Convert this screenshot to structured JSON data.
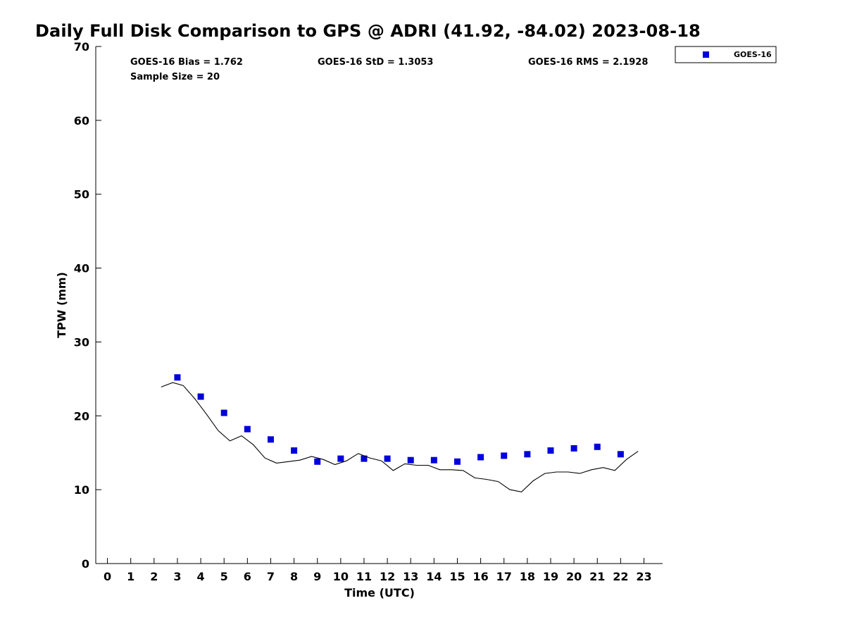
{
  "chart_data": {
    "type": "scatter",
    "title": "Daily Full Disk Comparison to GPS @ ADRI (41.92, -84.02) 2023-08-18",
    "xlabel": "Time (UTC)",
    "ylabel": "TPW (mm)",
    "xlim": [
      -0.5,
      23.8
    ],
    "ylim": [
      0,
      70
    ],
    "x_ticks": [
      "0",
      "1",
      "2",
      "3",
      "4",
      "5",
      "6",
      "7",
      "8",
      "9",
      "10",
      "11",
      "12",
      "13",
      "14",
      "15",
      "16",
      "17",
      "18",
      "19",
      "20",
      "21",
      "22",
      "23"
    ],
    "y_ticks": [
      "0",
      "10",
      "20",
      "30",
      "40",
      "50",
      "60",
      "70"
    ],
    "grid": false,
    "legend_position": "top-right (outside plot)",
    "stats": {
      "bias": "GOES-16 Bias = 1.762",
      "std": "GOES-16 StD = 1.3053",
      "rms": "GOES-16 RMS = 2.1928",
      "sample": "Sample Size = 20"
    },
    "series": [
      {
        "name": "GOES-16",
        "style": "markers",
        "color": "#0000dd",
        "x": [
          3,
          4,
          5,
          6,
          7,
          8,
          9,
          10,
          11,
          12,
          13,
          14,
          15,
          16,
          17,
          18,
          19,
          20,
          21,
          22
        ],
        "y": [
          25.2,
          22.6,
          20.4,
          18.2,
          16.8,
          15.3,
          13.8,
          14.2,
          14.2,
          14.2,
          14.0,
          14.0,
          13.8,
          14.4,
          14.6,
          14.8,
          15.3,
          15.6,
          15.8,
          14.8
        ]
      },
      {
        "style": "line",
        "color": "#000000",
        "x": [
          2.3,
          2.8,
          3.25,
          3.75,
          4.25,
          4.75,
          5.25,
          5.75,
          6.25,
          6.75,
          7.25,
          7.75,
          8.25,
          8.75,
          9.25,
          9.75,
          10.25,
          10.75,
          11.25,
          11.75,
          12.25,
          12.75,
          13.25,
          13.75,
          14.25,
          14.75,
          15.25,
          15.75,
          16.25,
          16.75,
          17.25,
          17.75,
          18.25,
          18.75,
          19.25,
          19.75,
          20.25,
          20.75,
          21.25,
          21.75,
          22.25,
          22.75
        ],
        "y": [
          23.9,
          24.5,
          24.1,
          22.3,
          20.2,
          18.0,
          16.6,
          17.3,
          16.1,
          14.3,
          13.6,
          13.8,
          14.0,
          14.5,
          14.1,
          13.4,
          13.9,
          14.9,
          14.3,
          13.9,
          12.6,
          13.5,
          13.3,
          13.3,
          12.7,
          12.7,
          12.6,
          11.6,
          11.4,
          11.1,
          10.0,
          9.7,
          11.2,
          12.2,
          12.4,
          12.4,
          12.2,
          12.7,
          13.0,
          12.6,
          14.1,
          15.2
        ]
      }
    ]
  }
}
